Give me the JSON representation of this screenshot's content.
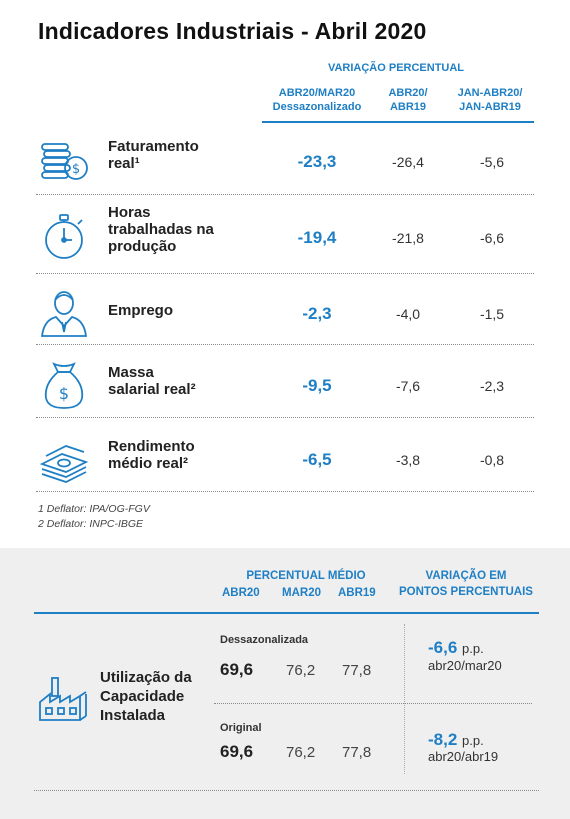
{
  "title": "Indicadores Industriais - Abril 2020",
  "header": {
    "main": "VARIAÇÃO PERCENTUAL",
    "col1": [
      "ABR20/MAR20",
      "Dessazonalizado"
    ],
    "col2": [
      "ABR20/",
      "ABR19"
    ],
    "col3": [
      "JAN-ABR20/",
      "JAN-ABR19"
    ]
  },
  "rows": [
    {
      "label": [
        "Faturamento",
        "real¹"
      ],
      "icon": "coins-money-icon",
      "v1": "-23,3",
      "v2": "-26,4",
      "v3": "-5,6"
    },
    {
      "label": [
        "Horas",
        "trabalhadas na",
        "produção"
      ],
      "icon": "stopwatch-icon",
      "v1": "-19,4",
      "v2": "-21,8",
      "v3": "-6,6"
    },
    {
      "label": [
        "Emprego"
      ],
      "icon": "worker-icon",
      "v1": "-2,3",
      "v2": "-4,0",
      "v3": "-1,5"
    },
    {
      "label": [
        "Massa",
        "salarial real²"
      ],
      "icon": "money-bag-icon",
      "v1": "-9,5",
      "v2": "-7,6",
      "v3": "-2,3"
    },
    {
      "label": [
        "Rendimento",
        "médio real²"
      ],
      "icon": "cash-stack-icon",
      "v1": "-6,5",
      "v2": "-3,8",
      "v3": "-0,8"
    }
  ],
  "notes": [
    "1 Deflator: IPA/OG-FGV",
    "2 Deflator: INPC-IBGE"
  ],
  "capacity": {
    "head_left": "PERCENTUAL MÉDIO",
    "cols": [
      "ABR20",
      "MAR20",
      "ABR19"
    ],
    "head_right": [
      "VARIAÇÃO EM",
      "PONTOS PERCENTUAIS"
    ],
    "label": [
      "Utilização da",
      "Capacidade",
      "Instalada"
    ],
    "icon": "factory-icon",
    "groups": [
      {
        "kind": "Dessazonalizada",
        "values": [
          "69,6",
          "76,2",
          "77,8"
        ],
        "variation": "-6,6",
        "unit": "p.p.",
        "period": "abr20/mar20"
      },
      {
        "kind": "Original",
        "values": [
          "69,6",
          "76,2",
          "77,8"
        ],
        "variation": "-8,2",
        "unit": "p.p.",
        "period": "abr20/abr19"
      }
    ]
  }
}
